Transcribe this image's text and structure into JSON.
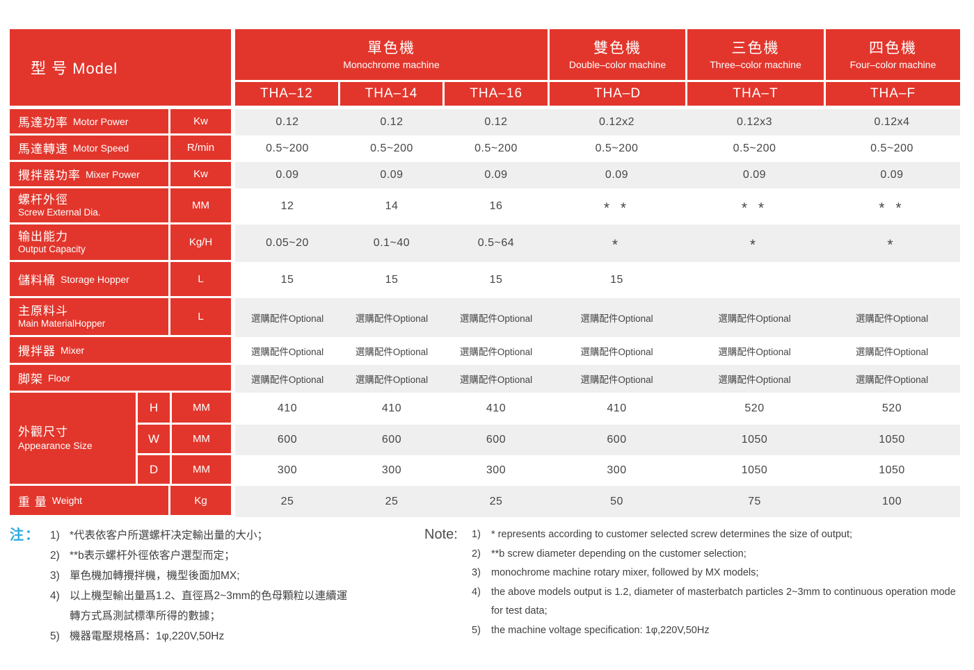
{
  "colors": {
    "brand_red": "#e2362c",
    "row_alt_gray": "#efefef",
    "note_label_blue": "#29abe2",
    "value_text": "#454545"
  },
  "header": {
    "model_label": "型 号 Model",
    "groups": [
      {
        "zh": "單色機",
        "en": "Monochrome machine",
        "models": [
          "THA–12",
          "THA–14",
          "THA–16"
        ]
      },
      {
        "zh": "雙色機",
        "en": "Double–color machine",
        "models": [
          "THA–D"
        ]
      },
      {
        "zh": "三色機",
        "en": "Three–color machine",
        "models": [
          "THA–T"
        ]
      },
      {
        "zh": "四色機",
        "en": "Four–color machine",
        "models": [
          "THA–F"
        ]
      }
    ]
  },
  "rows": [
    {
      "zh": "馬達功率",
      "en": "Motor Power",
      "unit": "Kw",
      "values": [
        "0.12",
        "0.12",
        "0.12",
        "0.12x2",
        "0.12x3",
        "0.12x4"
      ]
    },
    {
      "zh": "馬達轉速",
      "en": "Motor Speed",
      "unit": "R/min",
      "values": [
        "0.5~200",
        "0.5~200",
        "0.5~200",
        "0.5~200",
        "0.5~200",
        "0.5~200"
      ]
    },
    {
      "zh": "攪拌器功率",
      "en": "Mixer Power",
      "unit": "Kw",
      "values": [
        "0.09",
        "0.09",
        "0.09",
        "0.09",
        "0.09",
        "0.09"
      ]
    },
    {
      "zh": "螺杆外徑",
      "en": "Screw External Dia.",
      "unit": "MM",
      "values": [
        "12",
        "14",
        "16",
        "* *",
        "* *",
        "* *"
      ]
    },
    {
      "zh": "输出能力",
      "en": "Output Capacity",
      "unit": "Kg/H",
      "values": [
        "0.05~20",
        "0.1~40",
        "0.5~64",
        "*",
        "*",
        "*"
      ]
    },
    {
      "zh": "儲料桶",
      "en": "Storage Hopper",
      "unit": "L",
      "values": [
        "15",
        "15",
        "15",
        "15",
        "",
        ""
      ]
    },
    {
      "zh": "主原料斗",
      "en": "Main MaterialHopper",
      "unit": "L",
      "values": [
        "選購配件Optional",
        "選購配件Optional",
        "選購配件Optional",
        "選購配件Optional",
        "選購配件Optional",
        "選購配件Optional"
      ]
    },
    {
      "zh": "攪拌器",
      "en": "Mixer",
      "unit": "",
      "values": [
        "選購配件Optional",
        "選購配件Optional",
        "選購配件Optional",
        "選購配件Optional",
        "選購配件Optional",
        "選購配件Optional"
      ]
    },
    {
      "zh": "脚架",
      "en": "Floor",
      "unit": "",
      "values": [
        "選購配件Optional",
        "選購配件Optional",
        "選購配件Optional",
        "選購配件Optional",
        "選購配件Optional",
        "選購配件Optional"
      ]
    }
  ],
  "size": {
    "zh": "外觀尺寸",
    "en": "Appearance Size",
    "rows": [
      {
        "sub": "H",
        "unit": "MM",
        "values": [
          "410",
          "410",
          "410",
          "410",
          "520",
          "520"
        ]
      },
      {
        "sub": "W",
        "unit": "MM",
        "values": [
          "600",
          "600",
          "600",
          "600",
          "1050",
          "1050"
        ]
      },
      {
        "sub": "D",
        "unit": "MM",
        "values": [
          "300",
          "300",
          "300",
          "300",
          "1050",
          "1050"
        ]
      }
    ]
  },
  "weight": {
    "zh": "重 量",
    "en": "Weight",
    "unit": "Kg",
    "values": [
      "25",
      "25",
      "25",
      "50",
      "75",
      "100"
    ]
  },
  "notes_zh": {
    "label": "注：",
    "items": [
      {
        "num": "1)",
        "text": "*代表依客户所選螺杆决定輸出量的大小；"
      },
      {
        "num": "2)",
        "text": "**b表示螺杆外徑依客户選型而定；"
      },
      {
        "num": "3)",
        "text": "單色機加轉攪拌機，機型後面加MX;"
      },
      {
        "num": "4)",
        "text": "以上機型輸出量爲1.2、直徑爲2~3mm的色母顆粒以連續運轉方式爲測試標準所得的數據；"
      },
      {
        "num": "5)",
        "text": "機器電壓規格爲：1φ,220V,50Hz"
      }
    ]
  },
  "notes_en": {
    "label": "Note:",
    "items": [
      {
        "num": "1)",
        "text": "* represents according to customer selected screw determines the size of output;"
      },
      {
        "num": "2)",
        "text": "**b screw diameter depending on the customer selection;"
      },
      {
        "num": "3)",
        "text": "monochrome machine rotary mixer, followed by MX models;"
      },
      {
        "num": "4)",
        "text": "the above models output is 1.2, diameter of masterbatch particles 2~3mm to continuous operation mode for test data;"
      },
      {
        "num": "5)",
        "text": "the machine voltage specification: 1φ,220V,50Hz"
      }
    ]
  }
}
